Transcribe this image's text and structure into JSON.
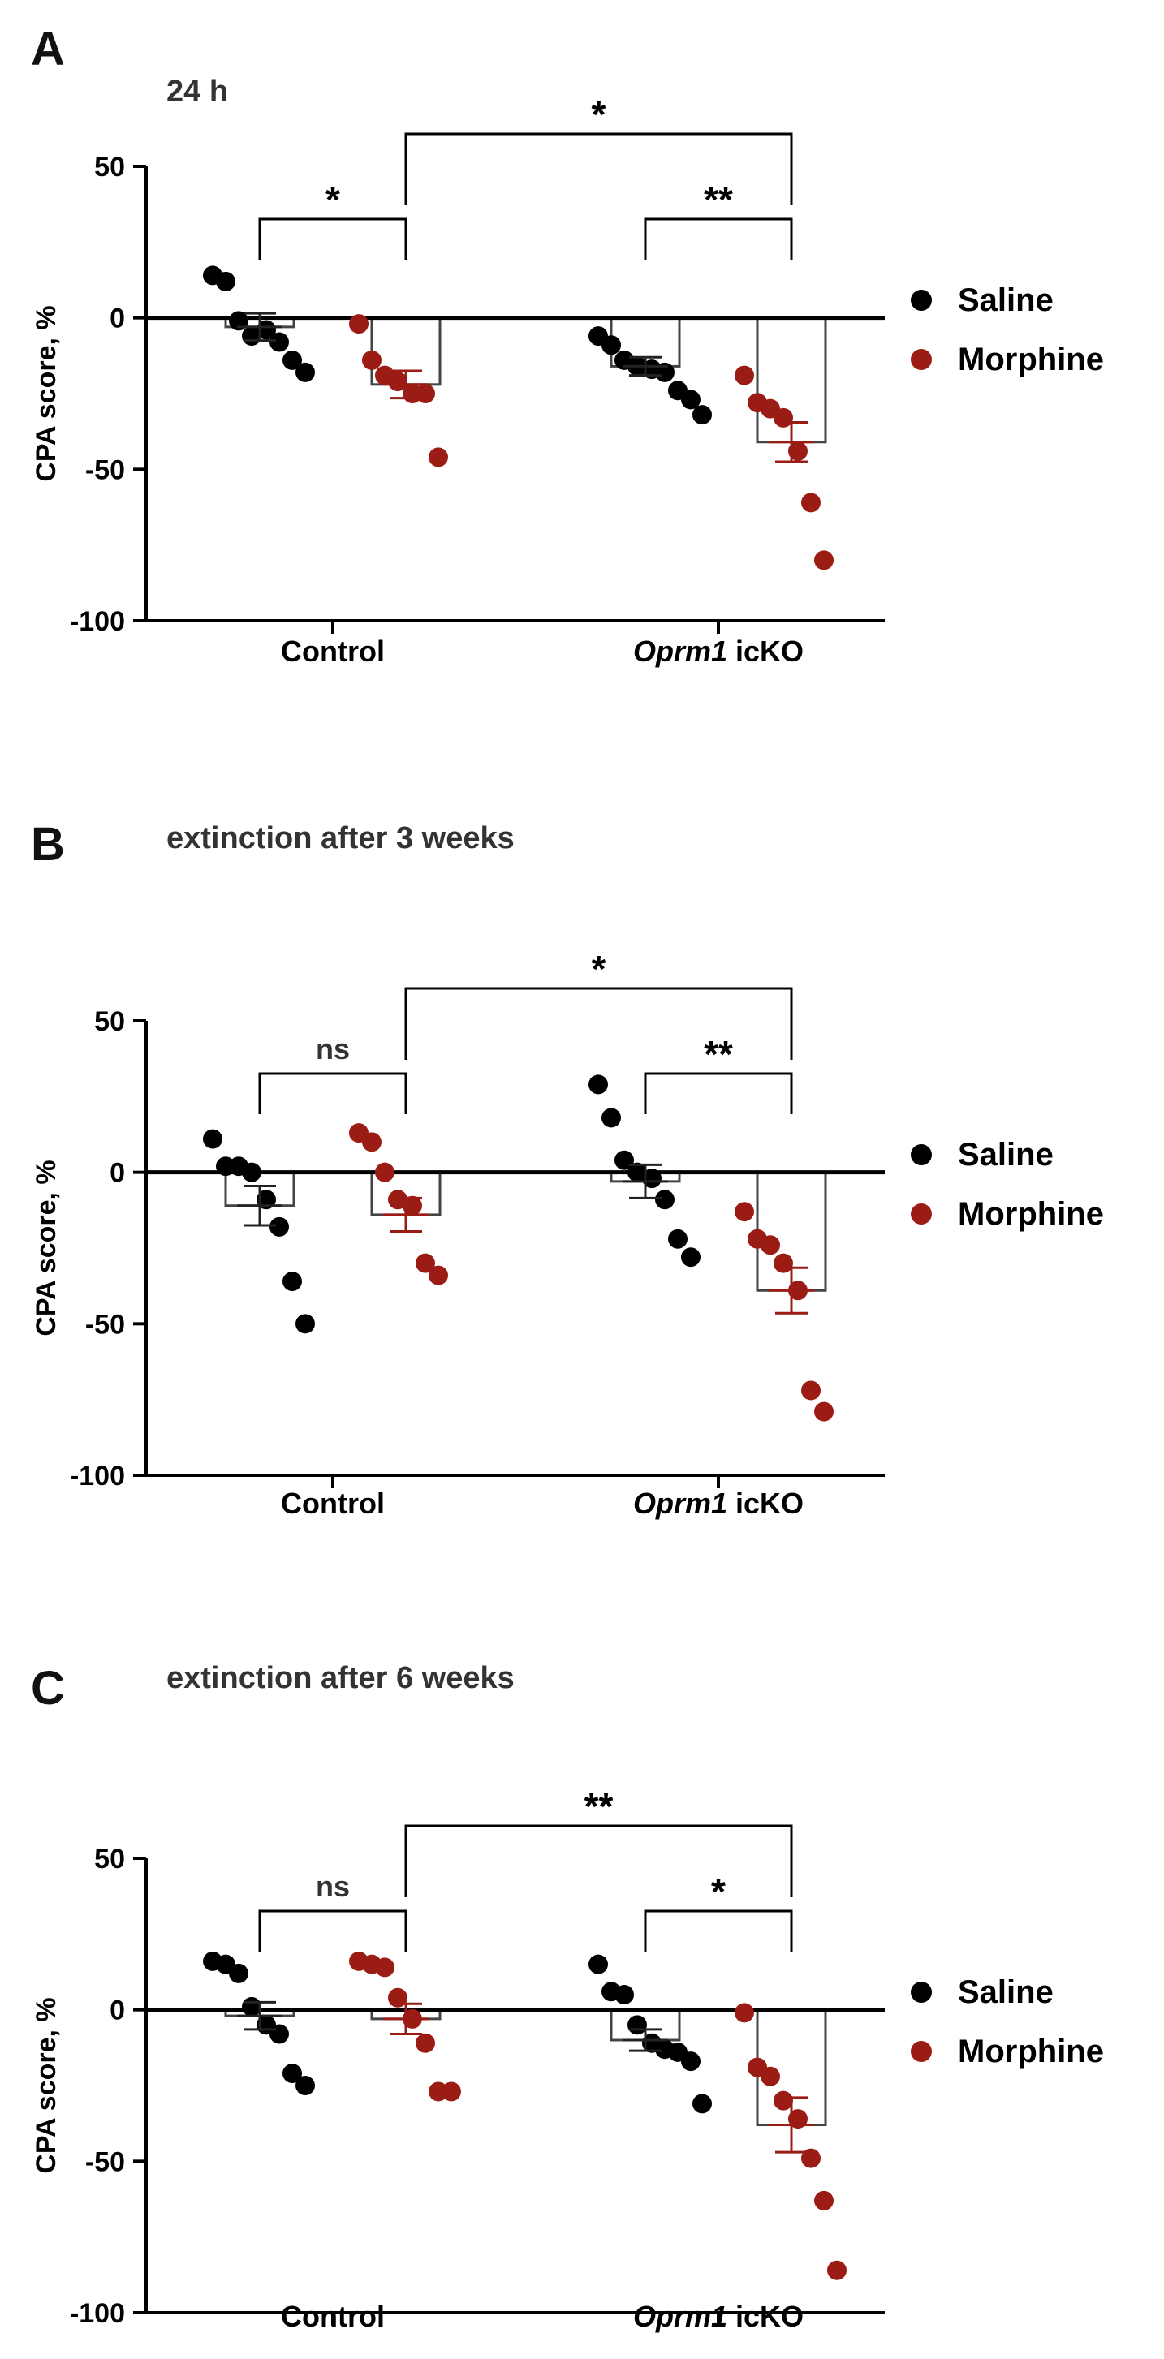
{
  "chart_data": [
    {
      "type": "bar",
      "panel_label": "A",
      "title": "24 h",
      "ylabel": "CPA score, %",
      "ylim": [
        -100,
        50
      ],
      "yticks": [
        50,
        0,
        -50,
        -100
      ],
      "ytick_labels": [
        "50",
        "0",
        "-50",
        "-100"
      ],
      "grid": false,
      "legend_position": "right",
      "categories": [
        {
          "prefix": "Control",
          "suffix": ""
        },
        {
          "prefix": "Oprm1",
          "suffix": " icKO"
        }
      ],
      "series": [
        {
          "name": "Saline",
          "color": "#000000",
          "values": [
            -3,
            -16
          ],
          "sem": [
            4.5,
            3
          ],
          "points": [
            [
              14,
              12,
              -1,
              -6,
              -4,
              -8,
              -14,
              -18
            ],
            [
              -6,
              -9,
              -14,
              -16,
              -17,
              -18,
              -24,
              -27,
              -32
            ]
          ]
        },
        {
          "name": "Morphine",
          "color": "#9b1c14",
          "values": [
            -22,
            -41
          ],
          "sem": [
            4.5,
            6.5
          ],
          "points": [
            [
              -2,
              -14,
              -19,
              -21,
              -25,
              -25,
              -46
            ],
            [
              -19,
              -28,
              -30,
              -33,
              -44,
              -61,
              -80
            ]
          ]
        }
      ],
      "comparisons": [
        {
          "between": [
            "Control Saline",
            "Control Morphine"
          ],
          "label": "*"
        },
        {
          "between": [
            "Oprm1 icKO Saline",
            "Oprm1 icKO Morphine"
          ],
          "label": "**"
        },
        {
          "between": [
            "Control Morphine",
            "Oprm1 icKO Morphine"
          ],
          "label": "*"
        }
      ]
    },
    {
      "type": "bar",
      "panel_label": "B",
      "title": "extinction after 3 weeks",
      "ylabel": "CPA score, %",
      "ylim": [
        -100,
        50
      ],
      "yticks": [
        50,
        0,
        -50,
        -100
      ],
      "ytick_labels": [
        "50",
        "0",
        "-50",
        "-100"
      ],
      "grid": false,
      "legend_position": "right",
      "categories": [
        {
          "prefix": "Control",
          "suffix": ""
        },
        {
          "prefix": "Oprm1",
          "suffix": " icKO"
        }
      ],
      "series": [
        {
          "name": "Saline",
          "color": "#000000",
          "values": [
            -11,
            -3
          ],
          "sem": [
            6.5,
            5.5
          ],
          "points": [
            [
              11,
              2,
              2,
              0,
              -9,
              -18,
              -36,
              -50
            ],
            [
              29,
              18,
              4,
              0,
              -2,
              -9,
              -22,
              -28
            ]
          ]
        },
        {
          "name": "Morphine",
          "color": "#9b1c14",
          "values": [
            -14,
            -39
          ],
          "sem": [
            5.5,
            7.5
          ],
          "points": [
            [
              13,
              10,
              0,
              -9,
              -11,
              -30,
              -34
            ],
            [
              -13,
              -22,
              -24,
              -30,
              -39,
              -72,
              -79
            ]
          ]
        }
      ],
      "comparisons": [
        {
          "between": [
            "Control Saline",
            "Control Morphine"
          ],
          "label": "ns"
        },
        {
          "between": [
            "Oprm1 icKO Saline",
            "Oprm1 icKO Morphine"
          ],
          "label": "**"
        },
        {
          "between": [
            "Control Morphine",
            "Oprm1 icKO Morphine"
          ],
          "label": "*"
        }
      ]
    },
    {
      "type": "bar",
      "panel_label": "C",
      "title": "extinction after 6 weeks",
      "ylabel": "CPA score, %",
      "ylim": [
        -100,
        50
      ],
      "yticks": [
        50,
        0,
        -50,
        -100
      ],
      "ytick_labels": [
        "50",
        "0",
        "-50",
        "-100"
      ],
      "grid": false,
      "legend_position": "right",
      "categories": [
        {
          "prefix": "Control",
          "suffix": ""
        },
        {
          "prefix": "Oprm1",
          "suffix": " icKO"
        }
      ],
      "series": [
        {
          "name": "Saline",
          "color": "#000000",
          "values": [
            -2,
            -10
          ],
          "sem": [
            4.5,
            3.5
          ],
          "points": [
            [
              16,
              15,
              12,
              1,
              -5,
              -8,
              -21,
              -25
            ],
            [
              15,
              6,
              5,
              -5,
              -11,
              -13,
              -14,
              -17,
              -31
            ]
          ]
        },
        {
          "name": "Morphine",
          "color": "#9b1c14",
          "values": [
            -3,
            -38
          ],
          "sem": [
            5,
            9
          ],
          "points": [
            [
              16,
              15,
              14,
              4,
              -3,
              -11,
              -27,
              -27
            ],
            [
              -1,
              -19,
              -22,
              -30,
              -36,
              -49,
              -63,
              -86
            ]
          ]
        }
      ],
      "comparisons": [
        {
          "between": [
            "Control Saline",
            "Control Morphine"
          ],
          "label": "ns"
        },
        {
          "between": [
            "Oprm1 icKO Saline",
            "Oprm1 icKO Morphine"
          ],
          "label": "*"
        },
        {
          "between": [
            "Control Morphine",
            "Oprm1 icKO Morphine"
          ],
          "label": "**"
        }
      ]
    }
  ]
}
